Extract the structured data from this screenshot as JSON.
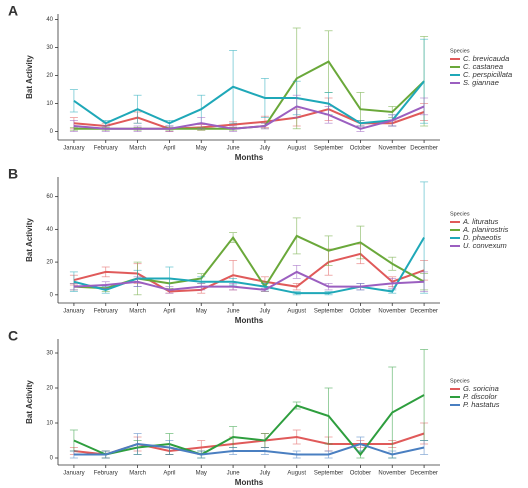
{
  "chart_data": [
    {
      "type": "line",
      "panel_label": "A",
      "x_label": "Months",
      "y_label": "Bat Activity",
      "legend_title": "Species",
      "categories": [
        "January",
        "February",
        "March",
        "April",
        "May",
        "June",
        "July",
        "August",
        "September",
        "October",
        "November",
        "December"
      ],
      "ylim": [
        -3,
        42
      ],
      "yticks": [
        0,
        10,
        20,
        30,
        40
      ],
      "series": [
        {
          "name": "C. brevicauda",
          "color": "#e05a5a",
          "values": [
            3,
            2,
            5,
            1,
            1.5,
            2.5,
            3.5,
            5,
            8,
            3,
            3,
            7
          ],
          "errors": [
            2,
            1,
            2,
            1,
            1,
            1,
            2,
            3,
            4,
            1,
            1,
            3
          ]
        },
        {
          "name": "C. castanea",
          "color": "#6aa83a",
          "values": [
            1,
            1,
            1,
            1,
            1,
            1,
            2,
            19,
            25,
            8,
            7,
            18
          ],
          "errors": [
            0.5,
            0.5,
            0.5,
            0.5,
            0.5,
            0.5,
            1,
            18,
            11,
            6,
            2,
            16
          ]
        },
        {
          "name": "C. perspicillata",
          "color": "#1fa8b8",
          "values": [
            11,
            3,
            8,
            3,
            8,
            16,
            12,
            12,
            10,
            3,
            4,
            18
          ],
          "errors": [
            4,
            1,
            5,
            1,
            5,
            13,
            7,
            6,
            4,
            1,
            2,
            15
          ]
        },
        {
          "name": "S. giannae",
          "color": "#9b5fc0",
          "values": [
            2,
            1,
            1,
            1,
            3,
            1,
            2,
            9,
            6,
            1,
            4,
            9
          ],
          "errors": [
            2,
            1,
            1,
            1,
            2,
            1,
            1,
            4,
            3,
            1,
            2,
            3
          ]
        }
      ]
    },
    {
      "type": "line",
      "panel_label": "B",
      "x_label": "Months",
      "y_label": "Bat Activity",
      "legend_title": "Species",
      "categories": [
        "January",
        "February",
        "March",
        "April",
        "May",
        "June",
        "July",
        "August",
        "September",
        "October",
        "November",
        "December"
      ],
      "ylim": [
        -5,
        72
      ],
      "yticks": [
        0,
        20,
        40,
        60
      ],
      "series": [
        {
          "name": "A. lituratus",
          "color": "#e05a5a",
          "values": [
            9,
            14,
            13,
            2,
            3,
            12,
            8,
            5,
            20,
            25,
            8,
            15
          ],
          "errors": [
            3,
            3,
            6,
            1,
            2,
            9,
            3,
            2,
            8,
            6,
            3,
            6
          ]
        },
        {
          "name": "A. planirostris",
          "color": "#6aa83a",
          "values": [
            5,
            4,
            10,
            7,
            10,
            35,
            5,
            36,
            27,
            32,
            19,
            8
          ],
          "errors": [
            2,
            2,
            10,
            3,
            3,
            3,
            3,
            11,
            9,
            10,
            4,
            5
          ]
        },
        {
          "name": "D. phaeotis",
          "color": "#1fa8b8",
          "values": [
            8,
            3,
            10,
            10,
            8,
            8,
            5,
            1,
            1,
            5,
            2,
            35
          ],
          "errors": [
            6,
            2,
            5,
            7,
            3,
            2,
            2,
            1,
            1,
            2,
            1,
            34
          ]
        },
        {
          "name": "U. convexum",
          "color": "#9b5fc0",
          "values": [
            5,
            6,
            8,
            3,
            5,
            5,
            3,
            14,
            5,
            5,
            7,
            8
          ],
          "errors": [
            2,
            2,
            3,
            2,
            2,
            2,
            1,
            4,
            2,
            2,
            3,
            6
          ]
        }
      ]
    },
    {
      "type": "line",
      "panel_label": "C",
      "x_label": "Months",
      "y_label": "Bat Activity",
      "legend_title": "Species",
      "categories": [
        "January",
        "February",
        "March",
        "April",
        "May",
        "June",
        "July",
        "August",
        "September",
        "October",
        "November",
        "December"
      ],
      "ylim": [
        -2,
        34
      ],
      "yticks": [
        0,
        10,
        20,
        30
      ],
      "series": [
        {
          "name": "G. soricina",
          "color": "#e05a5a",
          "values": [
            2,
            1,
            4,
            2,
            3,
            4,
            5,
            6,
            4,
            4,
            4,
            7
          ],
          "errors": [
            1,
            1,
            2,
            1,
            2,
            2,
            2,
            2,
            2,
            1,
            1,
            3
          ]
        },
        {
          "name": "P. discolor",
          "color": "#2e9e3e",
          "values": [
            5,
            1,
            3,
            4,
            1,
            6,
            5,
            15,
            12,
            1,
            13,
            18
          ],
          "errors": [
            3,
            1,
            2,
            3,
            1,
            3,
            2,
            1,
            8,
            1,
            13,
            13
          ]
        },
        {
          "name": "P. hastatus",
          "color": "#4a7fc1",
          "values": [
            1,
            1,
            4,
            3,
            1,
            2,
            2,
            1,
            1,
            4,
            1,
            3
          ],
          "errors": [
            1,
            1,
            3,
            2,
            1,
            1,
            1,
            1,
            1,
            2,
            1,
            2
          ]
        }
      ]
    }
  ]
}
